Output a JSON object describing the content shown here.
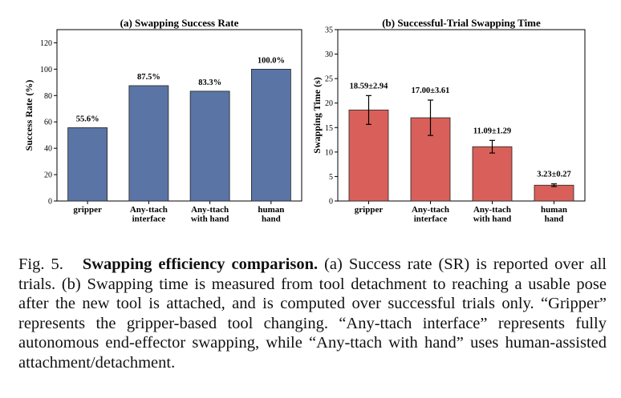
{
  "chart_data": [
    {
      "type": "bar",
      "title": "(a) Swapping Success Rate",
      "xlabel": "",
      "ylabel": "Success Rate (%)",
      "ylim": [
        0,
        130
      ],
      "yticks": [
        0,
        20,
        40,
        60,
        80,
        100,
        120
      ],
      "categories": [
        [
          "gripper"
        ],
        [
          "Any-ttach",
          "interface"
        ],
        [
          "Any-ttach",
          "with hand"
        ],
        [
          "human",
          "hand"
        ]
      ],
      "values": [
        55.6,
        87.5,
        83.3,
        100.0
      ],
      "labels": [
        "55.6%",
        "87.5%",
        "83.3%",
        "100.0%"
      ],
      "color": "#5a74a6",
      "grid": false
    },
    {
      "type": "bar",
      "title": "(b) Successful-Trial Swapping Time",
      "xlabel": "",
      "ylabel": "Swapping Time (s)",
      "ylim": [
        0,
        35
      ],
      "yticks": [
        0,
        5,
        10,
        15,
        20,
        25,
        30,
        35
      ],
      "categories": [
        [
          "gripper"
        ],
        [
          "Any-ttach",
          "interface"
        ],
        [
          "Any-ttach",
          "with hand"
        ],
        [
          "human",
          "hand"
        ]
      ],
      "values": [
        18.59,
        17.0,
        11.09,
        3.23
      ],
      "errors": [
        2.94,
        3.61,
        1.29,
        0.27
      ],
      "labels": [
        "18.59±2.94",
        "17.00±3.61",
        "11.09±1.29",
        "3.23±0.27"
      ],
      "color": "#d9605a",
      "grid": false
    }
  ],
  "caption": {
    "fig_label": "Fig. 5.",
    "bold_title": "Swapping efficiency comparison.",
    "text": "(a) Success rate (SR) is reported over all trials. (b) Swapping time is measured from tool detachment to reaching a usable pose after the new tool is attached, and is computed over successful trials only. “Gripper” represents the gripper-based tool changing. “Any-ttach interface” represents fully autonomous end-effector swapping, while “Any-ttach with hand” uses human-assisted attachment/detachment."
  }
}
